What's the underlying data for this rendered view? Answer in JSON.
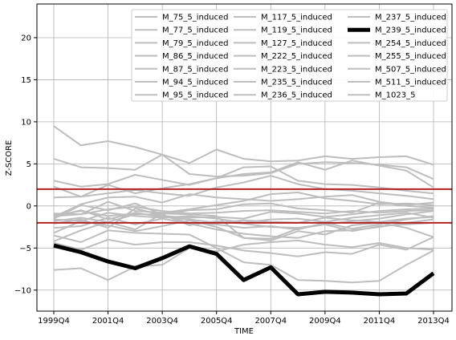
{
  "chart_data": {
    "type": "line",
    "title": "",
    "xlabel": "TIME",
    "ylabel": "Z-SCORE",
    "x": [
      "1999Q4",
      "2000Q4",
      "2001Q4",
      "2002Q4",
      "2003Q4",
      "2004Q4",
      "2005Q4",
      "2006Q4",
      "2007Q4",
      "2008Q4",
      "2009Q4",
      "2010Q4",
      "2011Q4",
      "2012Q4",
      "2013Q4"
    ],
    "xticks": [
      "1999Q4",
      "2001Q4",
      "2003Q4",
      "2005Q4",
      "2007Q4",
      "2009Q4",
      "2011Q4",
      "2013Q4"
    ],
    "ylim": [
      -12.5,
      24
    ],
    "yticks": [
      -10,
      -5,
      0,
      5,
      10,
      15,
      20
    ],
    "grid": true,
    "legend_position": "top-right",
    "legend_columns": 3,
    "reference_lines": [
      {
        "y": 2,
        "color": "#b22222"
      },
      {
        "y": -2,
        "color": "#b22222"
      }
    ],
    "background_color": "#bdbdbd",
    "highlight_color": "#000000",
    "series": [
      {
        "name": "M_75_5_induced",
        "values": [
          9.5,
          7.2,
          7.7,
          7.0,
          6.1,
          5.1,
          6.7,
          5.6,
          5.3,
          5.4,
          5.9,
          5.6,
          5.8,
          5.9,
          4.9
        ]
      },
      {
        "name": "M_77_5_induced",
        "values": [
          5.6,
          4.6,
          4.5,
          4.3,
          6.1,
          3.8,
          3.5,
          3.6,
          3.9,
          5.0,
          5.2,
          5.1,
          4.9,
          4.6,
          3.2
        ]
      },
      {
        "name": "M_79_5_induced",
        "values": [
          3.0,
          2.3,
          2.6,
          3.7,
          3.1,
          2.5,
          3.3,
          3.8,
          4.0,
          5.2,
          4.3,
          5.4,
          4.8,
          4.2,
          2.2
        ]
      },
      {
        "name": "M_86_5_induced",
        "values": [
          2.3,
          1.1,
          2.5,
          1.5,
          2.1,
          2.6,
          3.3,
          4.6,
          4.7,
          3.0,
          2.6,
          2.5,
          2.2,
          1.8,
          1.5
        ]
      },
      {
        "name": "M_87_5_induced",
        "values": [
          1.0,
          1.1,
          1.5,
          1.9,
          1.5,
          1.2,
          2.2,
          2.8,
          3.6,
          2.6,
          2.0,
          1.8,
          1.5,
          1.2,
          0.8
        ]
      },
      {
        "name": "M_94_5_induced",
        "values": [
          -1.3,
          0.2,
          1.0,
          1.1,
          0.4,
          1.4,
          1.0,
          0.8,
          0.6,
          0.8,
          1.1,
          1.3,
          0.5,
          0.1,
          0.4
        ]
      },
      {
        "name": "M_95_5_induced",
        "values": [
          -1.2,
          -1.0,
          0.5,
          -0.6,
          -0.8,
          -0.4,
          0.1,
          0.6,
          1.4,
          1.6,
          0.9,
          0.6,
          0.2,
          0.3,
          0.1
        ]
      },
      {
        "name": "M_117_5_induced",
        "values": [
          -1.5,
          0.1,
          -0.5,
          0.3,
          -1.0,
          -0.5,
          -0.4,
          0.2,
          0.3,
          -0.3,
          -0.5,
          -0.8,
          0.4,
          0.0,
          -0.2
        ]
      },
      {
        "name": "M_119_5_induced",
        "values": [
          -1.1,
          -0.6,
          -1.2,
          -0.9,
          -1.2,
          -1.4,
          -1.3,
          -1.5,
          -0.7,
          -0.9,
          -1.3,
          -1.0,
          -0.6,
          -0.4,
          -0.3
        ]
      },
      {
        "name": "M_127_5_induced",
        "values": [
          -1.6,
          -1.8,
          -0.8,
          -1.2,
          -1.4,
          -1.2,
          -1.5,
          -2.0,
          -1.6,
          -1.5,
          -1.9,
          -1.4,
          -1.1,
          -0.8,
          -1.4
        ]
      },
      {
        "name": "M_222_5_induced",
        "values": [
          -1.8,
          -1.4,
          -1.9,
          -1.0,
          -1.0,
          -2.3,
          -1.8,
          -2.1,
          -2.5,
          -2.6,
          -2.2,
          -1.8,
          -1.5,
          -1.0,
          -0.6
        ]
      },
      {
        "name": "M_223_5_induced",
        "values": [
          -2.1,
          -1.6,
          -2.6,
          -0.3,
          -1.1,
          -2.0,
          -2.2,
          -2.6,
          -2.4,
          -2.8,
          -2.0,
          -2.7,
          -2.2,
          -1.6,
          -1.2
        ]
      },
      {
        "name": "M_235_5_induced",
        "values": [
          -2.6,
          -2.4,
          -1.4,
          -2.2,
          -1.5,
          -2.1,
          -2.8,
          -3.3,
          -3.6,
          -3.8,
          -3.0,
          -2.9,
          -2.5,
          -2.0,
          -1.6
        ]
      },
      {
        "name": "M_236_5_induced",
        "values": [
          -4.2,
          -2.9,
          -1.9,
          -2.8,
          -0.9,
          -1.0,
          -1.2,
          -3.8,
          -3.9,
          -2.7,
          -2.2,
          -3.0,
          -2.4,
          -2.2,
          -2.0
        ]
      },
      {
        "name": "M_237_5_induced",
        "values": [
          -3.2,
          -1.8,
          -2.3,
          -3.0,
          -2.4,
          -1.7,
          -2.5,
          -3.8,
          -4.1,
          -3.0,
          -3.4,
          -2.3,
          -2.0,
          -2.6,
          -3.7
        ]
      },
      {
        "name": "M_239_5_induced",
        "highlight": true,
        "values": [
          -4.7,
          -5.5,
          -6.6,
          -7.4,
          -6.2,
          -4.8,
          -5.7,
          -8.8,
          -7.3,
          -10.5,
          -10.2,
          -10.3,
          -10.5,
          -10.4,
          -8.0
        ]
      },
      {
        "name": "M_254_5_induced",
        "values": [
          -4.4,
          -5.2,
          -4.0,
          -4.6,
          -4.3,
          -4.3,
          -4.7,
          -5.3,
          -5.6,
          -6.0,
          -5.5,
          -5.7,
          -4.6,
          -5.2,
          -3.7
        ]
      },
      {
        "name": "M_255_5_induced",
        "values": [
          -3.5,
          -4.3,
          -2.9,
          -3.2,
          -3.3,
          -3.4,
          -5.0,
          -6.7,
          -7.0,
          -8.8,
          -8.9,
          -9.1,
          -8.9,
          -7.0,
          -5.3
        ]
      },
      {
        "name": "M_507_5_induced",
        "values": [
          -7.6,
          -7.4,
          -8.8,
          -7.2,
          -7.0,
          -5.0,
          -5.4,
          -4.6,
          -4.3,
          -4.1,
          -4.6,
          -4.9,
          -4.4,
          -5.0,
          -5.2
        ]
      },
      {
        "name": "M_511_5_induced",
        "values": [
          -1.4,
          -0.5,
          -1.6,
          -0.8,
          -1.3,
          -1.6,
          -2.0,
          -1.7,
          -1.9,
          -2.0,
          -1.4,
          -1.7,
          -1.9,
          -1.5,
          -1.3
        ]
      },
      {
        "name": "M_1023_5",
        "values": [
          -0.9,
          -1.0,
          -0.4,
          -0.1,
          -0.6,
          -0.9,
          -0.8,
          -0.6,
          -0.5,
          -0.7,
          -0.9,
          -0.6,
          -0.8,
          -0.6,
          -0.5
        ]
      }
    ]
  }
}
